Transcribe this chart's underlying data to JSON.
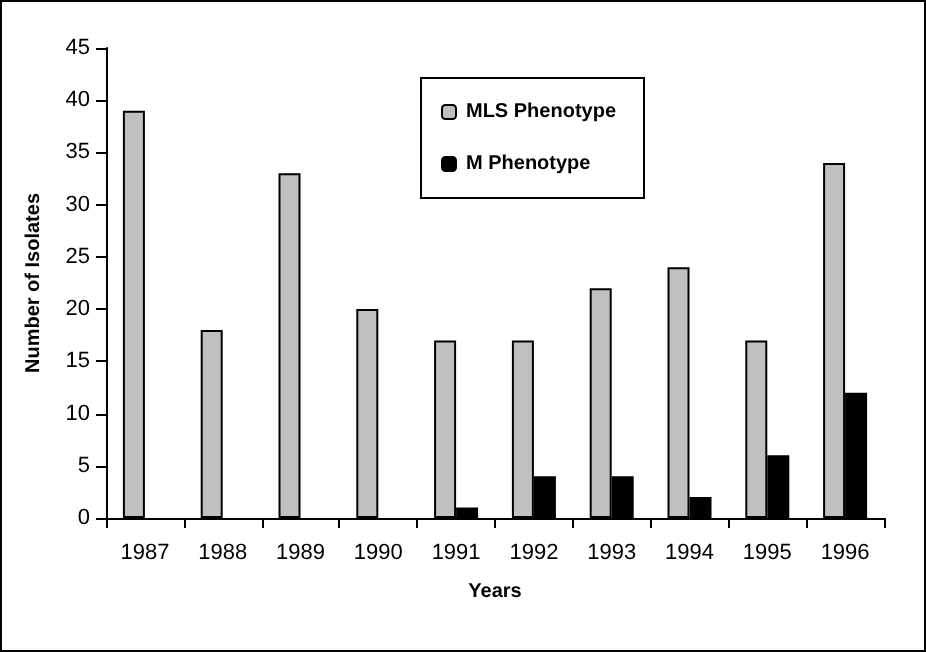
{
  "chart_data": {
    "type": "bar",
    "xlabel": "Years",
    "ylabel": "Number of Isolates",
    "categories": [
      "1987",
      "1988",
      "1989",
      "1990",
      "1991",
      "1992",
      "1993",
      "1994",
      "1995",
      "1996"
    ],
    "series": [
      {
        "name": "MLS Phenotype",
        "color": "#c0c0c0",
        "values": [
          39,
          18,
          33,
          20,
          17,
          17,
          22,
          24,
          17,
          34
        ]
      },
      {
        "name": "M Phenotype",
        "color": "#000000",
        "values": [
          null,
          null,
          null,
          null,
          1,
          4,
          4,
          2,
          6,
          12
        ]
      }
    ],
    "ylim": [
      0,
      45
    ],
    "yticks": [
      0,
      5,
      10,
      15,
      20,
      25,
      30,
      35,
      40,
      45
    ],
    "grid": false,
    "legend": "top right"
  }
}
